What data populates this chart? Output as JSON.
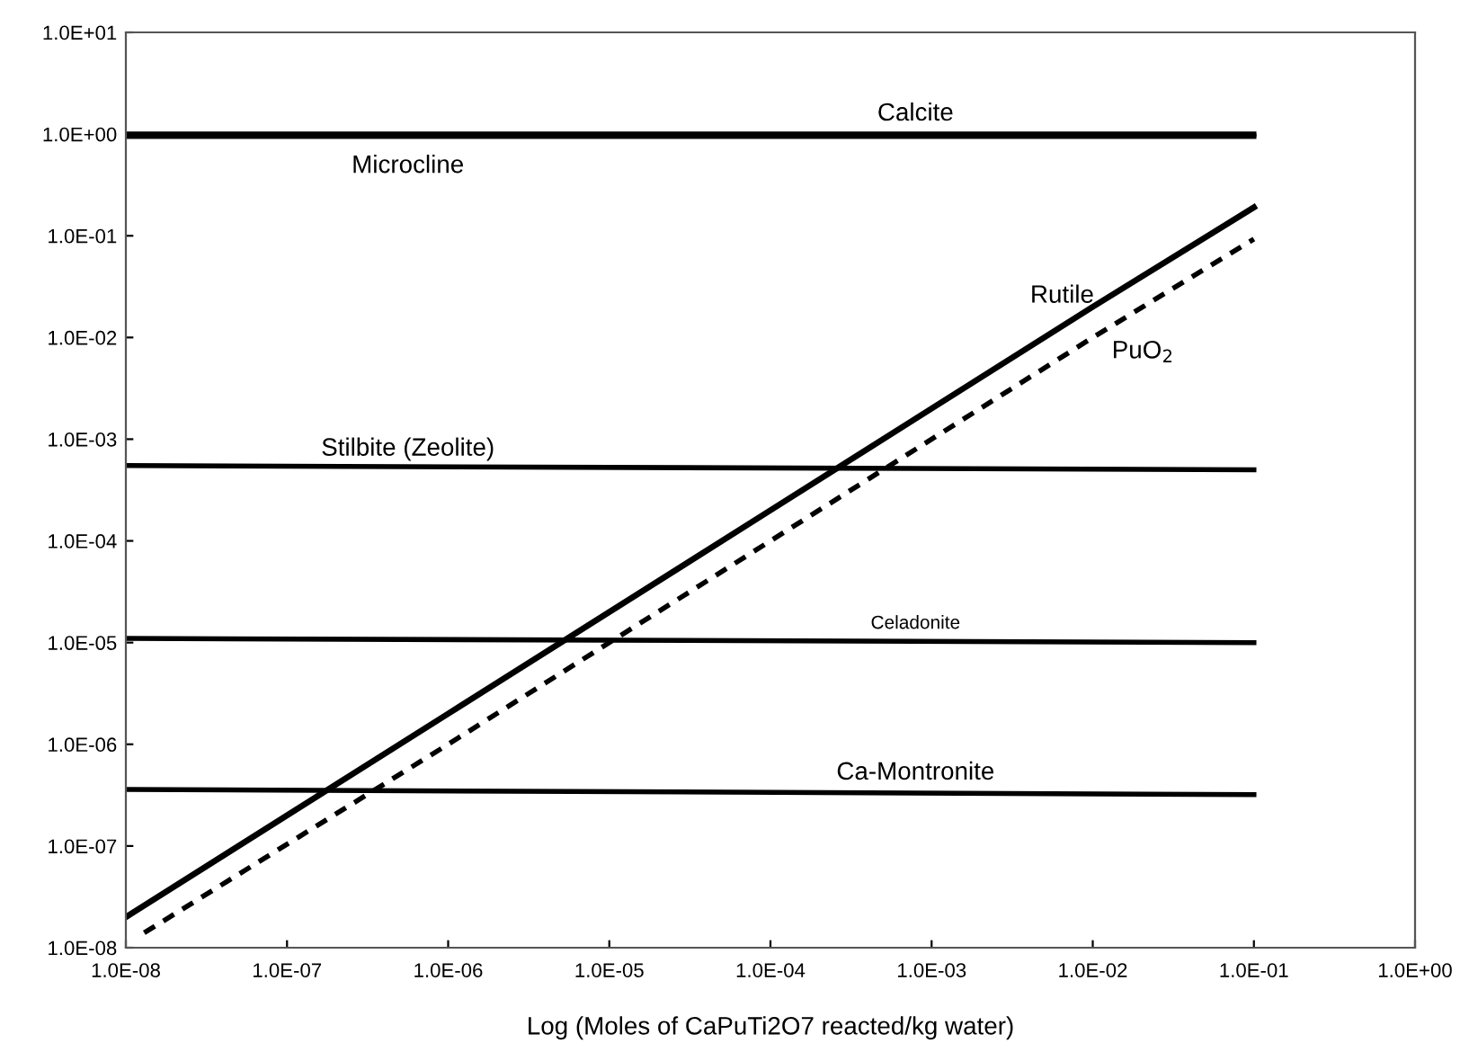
{
  "chart_data": {
    "type": "line",
    "xlabel": "Log (Moles of CaPuTi2O7 reacted/kg water)",
    "log": "xy",
    "xlim": [
      1e-08,
      1
    ],
    "ylim": [
      1e-08,
      10
    ],
    "xticks": [
      {
        "value": 1e-08,
        "label": "1.0E-08"
      },
      {
        "value": 1e-07,
        "label": "1.0E-07"
      },
      {
        "value": 1e-06,
        "label": "1.0E-06"
      },
      {
        "value": 1e-05,
        "label": "1.0E-05"
      },
      {
        "value": 0.0001,
        "label": "1.0E-04"
      },
      {
        "value": 0.001,
        "label": "1.0E-03"
      },
      {
        "value": 0.01,
        "label": "1.0E-02"
      },
      {
        "value": 0.1,
        "label": "1.0E-01"
      },
      {
        "value": 1,
        "label": "1.0E+00"
      }
    ],
    "yticks": [
      {
        "value": 1e-08,
        "label": "1.0E-08"
      },
      {
        "value": 1e-07,
        "label": "1.0E-07"
      },
      {
        "value": 1e-06,
        "label": "1.0E-06"
      },
      {
        "value": 1e-05,
        "label": "1.0E-05"
      },
      {
        "value": 0.0001,
        "label": "1.0E-04"
      },
      {
        "value": 0.001,
        "label": "1.0E-03"
      },
      {
        "value": 0.01,
        "label": "1.0E-02"
      },
      {
        "value": 0.1,
        "label": "1.0E-01"
      },
      {
        "value": 1,
        "label": "1.0E+00"
      },
      {
        "value": 10,
        "label": "1.0E+01"
      }
    ],
    "grid": false,
    "legend": false,
    "marker": "none",
    "series": [
      {
        "name": "Calcite",
        "color": "#000000",
        "x": [
          1e-08,
          0.1
        ],
        "values": [
          1.0,
          1.0
        ],
        "line_style": "solid"
      },
      {
        "name": "Microcline",
        "color": "#000000",
        "x": [
          1e-08,
          0.1
        ],
        "values": [
          0.95,
          0.95
        ],
        "line_style": "solid"
      },
      {
        "name": "Stilbite (Zeolite)",
        "color": "#000000",
        "x": [
          1e-08,
          0.1
        ],
        "values": [
          0.00055,
          0.0005
        ],
        "line_style": "solid"
      },
      {
        "name": "Celadonite",
        "color": "#000000",
        "x": [
          1e-08,
          0.1
        ],
        "values": [
          1.1e-05,
          1e-05
        ],
        "line_style": "solid"
      },
      {
        "name": "Ca-Montronite",
        "color": "#000000",
        "x": [
          1e-08,
          0.1
        ],
        "values": [
          3.6e-07,
          3.2e-07
        ],
        "line_style": "solid"
      },
      {
        "name": "Rutile",
        "color": "#000000",
        "x": [
          1e-08,
          1e-06,
          0.0001,
          0.01,
          0.1
        ],
        "values": [
          2e-08,
          2e-06,
          0.0002,
          0.02,
          0.19
        ],
        "line_style": "solid"
      },
      {
        "name": "PuO$_{2}$",
        "color": "#000000",
        "x": [
          1.3e-08,
          1e-06,
          0.0001,
          0.01,
          0.1
        ],
        "values": [
          1.4e-08,
          1e-06,
          0.0001,
          0.01,
          0.093
        ],
        "line_style": "dashed"
      }
    ]
  }
}
